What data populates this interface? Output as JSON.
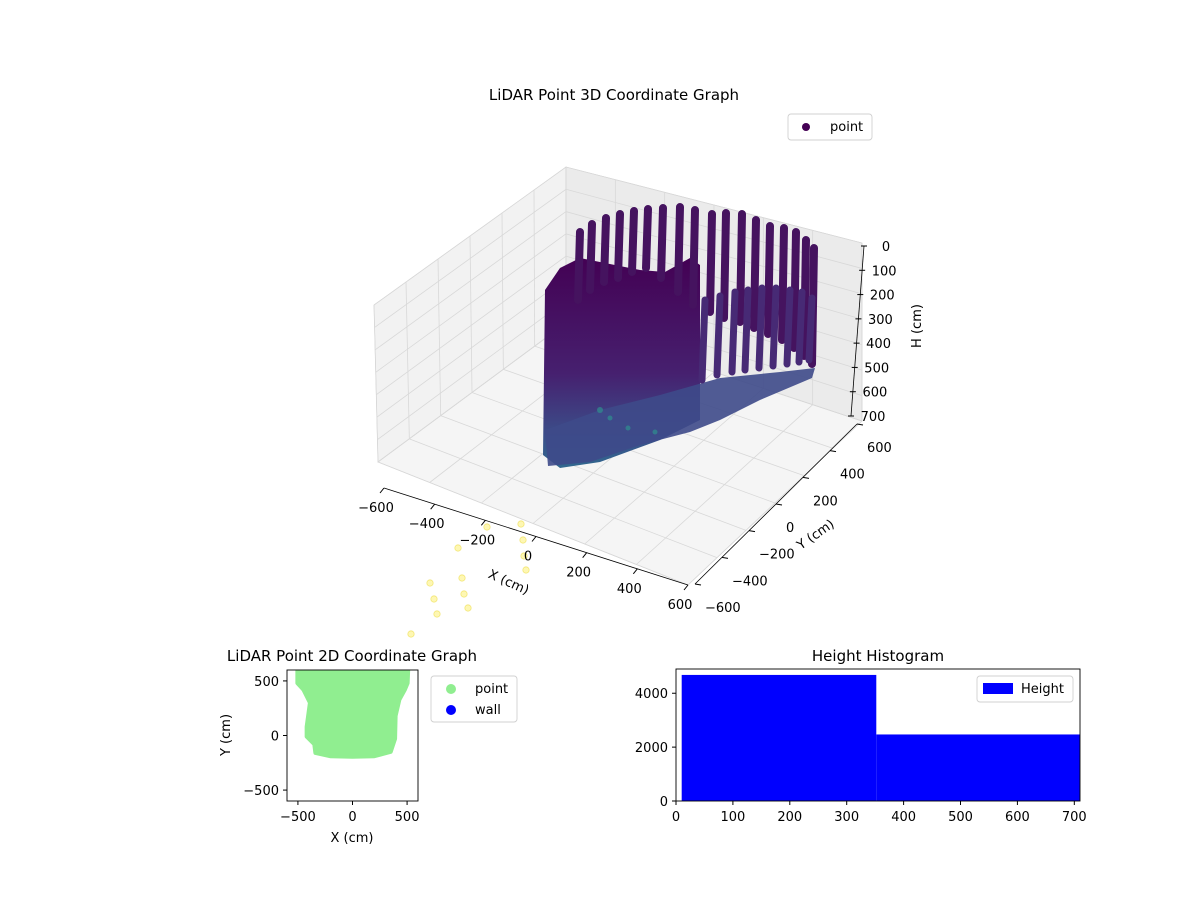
{
  "chart_data": [
    {
      "type": "scatter",
      "title": "LiDAR Point 3D Coordinate Graph",
      "xlabel": "X (cm)",
      "ylabel": "Y (cm)",
      "zlabel": "H (cm)",
      "xlim": [
        -600,
        600
      ],
      "ylim": [
        -600,
        600
      ],
      "zlim": [
        700,
        0
      ],
      "xticks": [
        -600,
        -400,
        -200,
        0,
        200,
        400,
        600
      ],
      "yticks": [
        -600,
        -400,
        -200,
        0,
        200,
        400,
        600
      ],
      "zticks": [
        0,
        100,
        200,
        300,
        400,
        500,
        600,
        700
      ],
      "legend": {
        "placement": "top-right",
        "entries": [
          {
            "name": "point",
            "color": "#440154"
          }
        ]
      },
      "colormap": "viridis",
      "series": [
        {
          "name": "point"
        }
      ]
    },
    {
      "type": "scatter",
      "title": "LiDAR Point 2D Coordinate Graph",
      "xlabel": "X (cm)",
      "ylabel": "Y (cm)",
      "xlim": [
        -600,
        600
      ],
      "ylim": [
        -600,
        600
      ],
      "xticks": [
        -500,
        0,
        500
      ],
      "yticks": [
        -500,
        0,
        500
      ],
      "legend": {
        "placement": "outside-right",
        "entries": [
          {
            "name": "point",
            "color": "#90ee90"
          },
          {
            "name": "wall",
            "color": "#0000ff"
          }
        ]
      },
      "series": [
        {
          "name": "point",
          "color": "#90ee90",
          "outline": [
            [
              -505,
              600
            ],
            [
              510,
              600
            ],
            [
              505,
              480
            ],
            [
              480,
              420
            ],
            [
              430,
              330
            ],
            [
              395,
              180
            ],
            [
              390,
              -30
            ],
            [
              350,
              -150
            ],
            [
              200,
              -190
            ],
            [
              0,
              -195
            ],
            [
              -200,
              -190
            ],
            [
              -340,
              -160
            ],
            [
              -350,
              -80
            ],
            [
              -420,
              -10
            ],
            [
              -420,
              80
            ],
            [
              -390,
              300
            ],
            [
              -450,
              420
            ],
            [
              -505,
              480
            ]
          ]
        },
        {
          "name": "wall",
          "color": "#0000ff",
          "points": []
        }
      ]
    },
    {
      "type": "bar",
      "title": "Height Histogram",
      "xlim": [
        0,
        710
      ],
      "ylim": [
        0,
        4900
      ],
      "xticks": [
        0,
        100,
        200,
        300,
        400,
        500,
        600,
        700
      ],
      "yticks": [
        0,
        2000,
        4000
      ],
      "legend": {
        "placement": "top-right",
        "entries": [
          {
            "name": "Height",
            "color": "#0000ff"
          }
        ]
      },
      "bins": [
        {
          "x0": 10,
          "x1": 352,
          "value": 4680
        },
        {
          "x0": 352,
          "x1": 710,
          "value": 2470
        }
      ],
      "series": [
        {
          "name": "Height",
          "color": "#0000ff"
        }
      ]
    }
  ]
}
